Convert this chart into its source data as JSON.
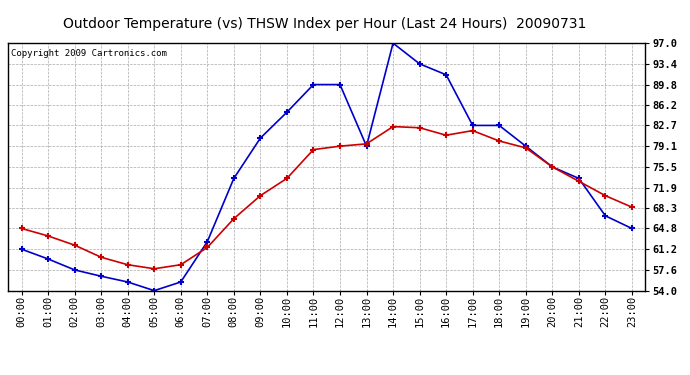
{
  "title": "Outdoor Temperature (vs) THSW Index per Hour (Last 24 Hours)  20090731",
  "copyright": "Copyright 2009 Cartronics.com",
  "hours": [
    "00:00",
    "01:00",
    "02:00",
    "03:00",
    "04:00",
    "05:00",
    "06:00",
    "07:00",
    "08:00",
    "09:00",
    "10:00",
    "11:00",
    "12:00",
    "13:00",
    "14:00",
    "15:00",
    "16:00",
    "17:00",
    "18:00",
    "19:00",
    "20:00",
    "21:00",
    "22:00",
    "23:00"
  ],
  "temp": [
    64.8,
    63.5,
    61.9,
    59.8,
    58.5,
    57.8,
    58.5,
    61.5,
    66.5,
    70.5,
    73.5,
    78.5,
    79.1,
    79.5,
    82.5,
    82.3,
    81.0,
    81.8,
    80.0,
    78.8,
    75.5,
    73.0,
    70.5,
    68.5
  ],
  "thsw": [
    61.2,
    59.5,
    57.6,
    56.5,
    55.5,
    54.0,
    55.5,
    62.5,
    73.5,
    80.5,
    85.0,
    89.8,
    89.8,
    79.1,
    97.0,
    93.4,
    91.5,
    82.7,
    82.7,
    79.1,
    75.5,
    73.5,
    67.0,
    64.8
  ],
  "temp_color": "#cc0000",
  "thsw_color": "#0000cc",
  "bg_color": "#ffffff",
  "plot_bg_color": "#ffffff",
  "grid_color": "#aaaaaa",
  "ylim_min": 54.0,
  "ylim_max": 97.0,
  "yticks": [
    54.0,
    57.6,
    61.2,
    64.8,
    68.3,
    71.9,
    75.5,
    79.1,
    82.7,
    86.2,
    89.8,
    93.4,
    97.0
  ],
  "title_fontsize": 10,
  "copyright_fontsize": 6.5,
  "tick_fontsize": 7.5,
  "marker": "+",
  "markersize": 5,
  "linewidth": 1.2,
  "markeredgewidth": 1.5
}
